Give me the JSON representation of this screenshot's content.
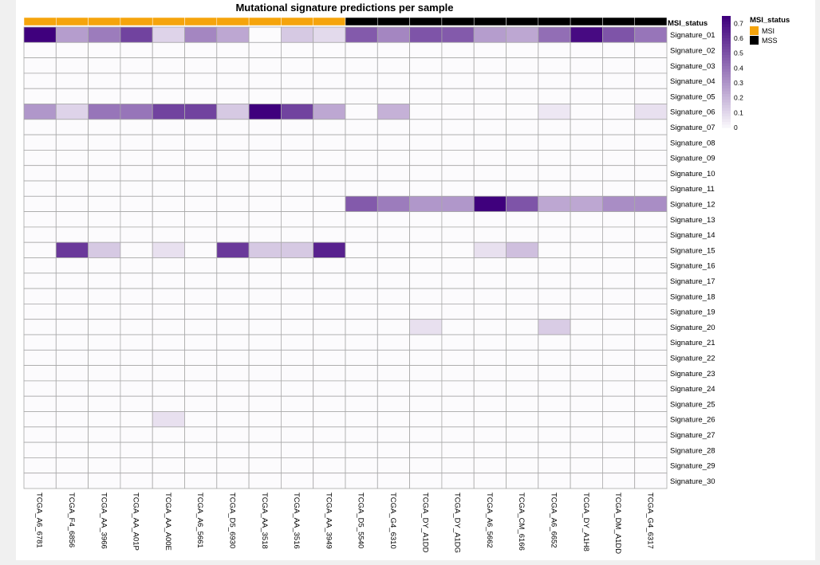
{
  "chart_data": {
    "type": "heatmap",
    "title": "Mutational signature predictions per sample",
    "samples": [
      "TCGA_A6_6781",
      "TCGA_F4_6856",
      "TCGA_AA_3966",
      "TCGA_AA_A01P",
      "TCGA_AA_A00E",
      "TCGA_A6_5661",
      "TCGA_D5_6930",
      "TCGA_AA_3518",
      "TCGA_AA_3516",
      "TCGA_AA_3949",
      "TCGA_D5_5540",
      "TCGA_G4_6310",
      "TCGA_DY_A1DD",
      "TCGA_DY_A1DG",
      "TCGA_A6_5662",
      "TCGA_CM_6166",
      "TCGA_A6_6652",
      "TCGA_DY_A1H8",
      "TCGA_DM_A1DD",
      "TCGA_G4_6317"
    ],
    "signatures": [
      "Signature_01",
      "Signature_02",
      "Signature_03",
      "Signature_04",
      "Signature_05",
      "Signature_06",
      "Signature_07",
      "Signature_08",
      "Signature_09",
      "Signature_10",
      "Signature_11",
      "Signature_12",
      "Signature_13",
      "Signature_14",
      "Signature_15",
      "Signature_16",
      "Signature_17",
      "Signature_18",
      "Signature_19",
      "Signature_20",
      "Signature_21",
      "Signature_22",
      "Signature_23",
      "Signature_24",
      "Signature_25",
      "Signature_26",
      "Signature_27",
      "Signature_28",
      "Signature_29",
      "Signature_30"
    ],
    "values": [
      [
        0.75,
        0.28,
        0.38,
        0.55,
        0.12,
        0.35,
        0.25,
        0.0,
        0.15,
        0.1,
        0.48,
        0.35,
        0.5,
        0.48,
        0.28,
        0.25,
        0.42,
        0.72,
        0.5,
        0.4
      ],
      [
        0,
        0,
        0,
        0,
        0,
        0,
        0,
        0,
        0,
        0,
        0,
        0,
        0,
        0,
        0,
        0,
        0,
        0,
        0,
        0
      ],
      [
        0,
        0,
        0,
        0,
        0,
        0,
        0,
        0,
        0,
        0,
        0,
        0,
        0,
        0,
        0,
        0,
        0,
        0,
        0,
        0
      ],
      [
        0,
        0,
        0,
        0,
        0,
        0,
        0,
        0,
        0,
        0,
        0,
        0,
        0,
        0,
        0,
        0,
        0,
        0,
        0,
        0
      ],
      [
        0,
        0,
        0,
        0,
        0,
        0,
        0,
        0,
        0,
        0,
        0,
        0,
        0,
        0,
        0,
        0,
        0,
        0,
        0,
        0
      ],
      [
        0.3,
        0.12,
        0.4,
        0.4,
        0.55,
        0.55,
        0.15,
        0.75,
        0.55,
        0.25,
        0.0,
        0.22,
        0.0,
        0.0,
        0.0,
        0.0,
        0.06,
        0.0,
        0.0,
        0.08
      ],
      [
        0,
        0,
        0,
        0,
        0,
        0,
        0,
        0,
        0,
        0,
        0,
        0,
        0,
        0,
        0,
        0,
        0,
        0,
        0,
        0
      ],
      [
        0,
        0,
        0,
        0,
        0,
        0,
        0,
        0,
        0,
        0,
        0,
        0,
        0,
        0,
        0,
        0,
        0,
        0,
        0,
        0
      ],
      [
        0,
        0,
        0,
        0,
        0,
        0,
        0,
        0,
        0,
        0,
        0,
        0,
        0,
        0,
        0,
        0,
        0,
        0,
        0,
        0
      ],
      [
        0,
        0,
        0,
        0,
        0,
        0,
        0,
        0,
        0,
        0,
        0,
        0,
        0,
        0,
        0,
        0,
        0,
        0,
        0,
        0
      ],
      [
        0,
        0,
        0,
        0,
        0,
        0,
        0,
        0,
        0,
        0,
        0,
        0,
        0,
        0,
        0,
        0,
        0,
        0,
        0,
        0
      ],
      [
        0,
        0,
        0,
        0,
        0,
        0,
        0,
        0,
        0,
        0,
        0.48,
        0.38,
        0.3,
        0.3,
        0.75,
        0.5,
        0.25,
        0.25,
        0.33,
        0.33
      ],
      [
        0,
        0,
        0,
        0,
        0,
        0,
        0,
        0,
        0,
        0,
        0,
        0,
        0,
        0,
        0,
        0,
        0,
        0,
        0,
        0
      ],
      [
        0,
        0,
        0,
        0,
        0,
        0,
        0,
        0,
        0,
        0,
        0,
        0,
        0,
        0,
        0,
        0,
        0,
        0,
        0,
        0
      ],
      [
        0,
        0.58,
        0.15,
        0,
        0.08,
        0,
        0.58,
        0.15,
        0.15,
        0.65,
        0,
        0,
        0,
        0,
        0.08,
        0.18,
        0,
        0,
        0,
        0
      ],
      [
        0,
        0,
        0,
        0,
        0,
        0,
        0,
        0,
        0,
        0,
        0,
        0,
        0,
        0,
        0,
        0,
        0,
        0,
        0,
        0
      ],
      [
        0,
        0,
        0,
        0,
        0,
        0,
        0,
        0,
        0,
        0,
        0,
        0,
        0,
        0,
        0,
        0,
        0,
        0,
        0,
        0
      ],
      [
        0,
        0,
        0,
        0,
        0,
        0,
        0,
        0,
        0,
        0,
        0,
        0,
        0,
        0,
        0,
        0,
        0,
        0,
        0,
        0
      ],
      [
        0,
        0,
        0,
        0,
        0,
        0,
        0,
        0,
        0,
        0,
        0,
        0,
        0,
        0,
        0,
        0,
        0,
        0,
        0,
        0
      ],
      [
        0,
        0,
        0,
        0,
        0,
        0,
        0,
        0,
        0,
        0,
        0,
        0,
        0.08,
        0,
        0,
        0,
        0.14,
        0,
        0,
        0
      ],
      [
        0,
        0,
        0,
        0,
        0,
        0,
        0,
        0,
        0,
        0,
        0,
        0,
        0,
        0,
        0,
        0,
        0,
        0,
        0,
        0
      ],
      [
        0,
        0,
        0,
        0,
        0,
        0,
        0,
        0,
        0,
        0,
        0,
        0,
        0,
        0,
        0,
        0,
        0,
        0,
        0,
        0
      ],
      [
        0,
        0,
        0,
        0,
        0,
        0,
        0,
        0,
        0,
        0,
        0,
        0,
        0,
        0,
        0,
        0,
        0,
        0,
        0,
        0
      ],
      [
        0,
        0,
        0,
        0,
        0,
        0,
        0,
        0,
        0,
        0,
        0,
        0,
        0,
        0,
        0,
        0,
        0,
        0,
        0,
        0
      ],
      [
        0,
        0,
        0,
        0,
        0,
        0,
        0,
        0,
        0,
        0,
        0,
        0,
        0,
        0,
        0,
        0,
        0,
        0,
        0,
        0
      ],
      [
        0,
        0,
        0,
        0,
        0.08,
        0,
        0,
        0,
        0,
        0,
        0,
        0,
        0,
        0,
        0,
        0,
        0,
        0,
        0,
        0
      ],
      [
        0,
        0,
        0,
        0,
        0,
        0,
        0,
        0,
        0,
        0,
        0,
        0,
        0,
        0,
        0,
        0,
        0,
        0,
        0,
        0
      ],
      [
        0,
        0,
        0,
        0,
        0,
        0,
        0,
        0,
        0,
        0,
        0,
        0,
        0,
        0,
        0,
        0,
        0,
        0,
        0,
        0
      ],
      [
        0,
        0,
        0,
        0,
        0,
        0,
        0,
        0,
        0,
        0,
        0,
        0,
        0,
        0,
        0,
        0,
        0,
        0,
        0,
        0
      ],
      [
        0,
        0,
        0,
        0,
        0,
        0,
        0,
        0,
        0,
        0,
        0,
        0,
        0,
        0,
        0,
        0,
        0,
        0,
        0,
        0
      ]
    ],
    "annotation": {
      "name": "MSI_status",
      "values": [
        "MSI",
        "MSI",
        "MSI",
        "MSI",
        "MSI",
        "MSI",
        "MSI",
        "MSI",
        "MSI",
        "MSI",
        "MSS",
        "MSS",
        "MSS",
        "MSS",
        "MSS",
        "MSS",
        "MSS",
        "MSS",
        "MSS",
        "MSS"
      ],
      "colors": {
        "MSI": "#f5a40c",
        "MSS": "#000000"
      }
    },
    "colorbar": {
      "range": [
        0,
        0.75
      ],
      "ticks": [
        0,
        0.1,
        0.2,
        0.3,
        0.4,
        0.5,
        0.6,
        0.7
      ],
      "low_color": "#fcfbfd",
      "high_color": "#3f007d"
    },
    "legend": {
      "title": "MSI_status",
      "items": [
        {
          "label": "MSI",
          "color": "#f5a40c"
        },
        {
          "label": "MSS",
          "color": "#000000"
        }
      ]
    }
  }
}
